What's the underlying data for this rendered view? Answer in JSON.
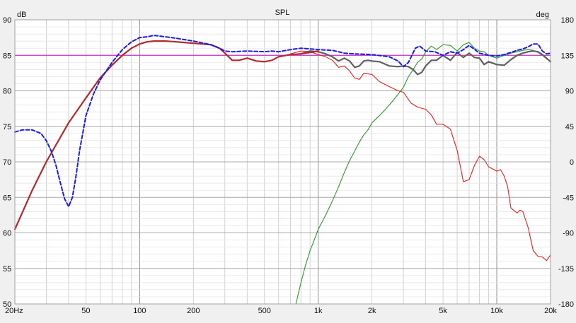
{
  "chart_data": {
    "type": "line",
    "title": "SPL",
    "ylabel_left": "dB",
    "ylabel_right": "deg",
    "x_scale": "log",
    "xlim": [
      20,
      20000
    ],
    "ylim_left": [
      50,
      90
    ],
    "ylim_right": [
      -180,
      180
    ],
    "grid": true,
    "x_tick_labels": [
      {
        "value": 20,
        "label": "20Hz"
      },
      {
        "value": 50,
        "label": "50"
      },
      {
        "value": 100,
        "label": "100"
      },
      {
        "value": 200,
        "label": "200"
      },
      {
        "value": 500,
        "label": "500"
      },
      {
        "value": 1000,
        "label": "1k"
      },
      {
        "value": 2000,
        "label": "2k"
      },
      {
        "value": 5000,
        "label": "5k"
      },
      {
        "value": 10000,
        "label": "10k"
      },
      {
        "value": 20000,
        "label": "20k"
      }
    ],
    "y_left_ticks": [
      50,
      55,
      60,
      65,
      70,
      75,
      80,
      85,
      90
    ],
    "y_right_ticks": [
      -180,
      -135,
      -90,
      -45,
      0,
      45,
      90,
      135,
      180
    ],
    "reference_level": 85,
    "colors": {
      "background": "#ffffff",
      "grid": "#c8c8c8",
      "reference": "#cc33cc",
      "red_line": "#ee1c1c",
      "green_line": "#2a9a2a",
      "gray_line": "#606060",
      "darkred_line": "#b22a2a",
      "blue_dashed": "#1a1aee"
    },
    "series": [
      {
        "key": "darkred",
        "axis": "left",
        "color": "#b22a2a",
        "width": 2.2,
        "dash": "",
        "x": [
          20,
          25,
          30,
          40,
          50,
          60,
          70,
          80,
          90,
          100,
          110,
          120,
          140,
          160,
          200,
          250,
          280,
          300,
          330,
          360,
          400,
          450,
          500,
          550,
          600,
          700,
          800,
          900,
          1000
        ],
        "y": [
          60.5,
          66,
          70,
          75.5,
          79,
          81.8,
          83.6,
          85,
          86,
          86.6,
          86.9,
          87,
          87,
          86.9,
          86.7,
          86.5,
          86,
          85.3,
          84.3,
          84.3,
          84.6,
          84.2,
          84.1,
          84.3,
          84.8,
          85.1,
          85.2,
          85.4,
          85.6
        ]
      },
      {
        "key": "red",
        "axis": "left",
        "color": "#ee1c1c",
        "width": 1.1,
        "dash": "",
        "x": [
          700,
          800,
          900,
          1000,
          1100,
          1200,
          1300,
          1400,
          1500,
          1600,
          1700,
          1800,
          2000,
          2200,
          2500,
          2800,
          3000,
          3300,
          3600,
          4000,
          4300,
          4600,
          5000,
          5500,
          6000,
          6500,
          7000,
          7500,
          8000,
          8500,
          9000,
          10000,
          10500,
          11000,
          11500,
          12000,
          13000,
          13500,
          14000,
          15000,
          16000,
          17000,
          18000,
          19000,
          20000
        ],
        "y": [
          85.2,
          85.6,
          85.5,
          85.1,
          84.8,
          84.3,
          83.3,
          83.5,
          82.8,
          81.8,
          81.6,
          82.5,
          82.3,
          81.3,
          80.6,
          80,
          79.8,
          78.3,
          77.7,
          77.4,
          76.6,
          75.3,
          75.3,
          74.6,
          71.6,
          67.2,
          67.5,
          69.5,
          70.8,
          70.3,
          69.3,
          68.7,
          68.9,
          68,
          66.5,
          63.5,
          62.8,
          63.2,
          63,
          60.7,
          57.5,
          56.7,
          56.6,
          56.1,
          56.9
        ]
      },
      {
        "key": "green",
        "axis": "left",
        "color": "#2a9a2a",
        "width": 1.1,
        "dash": "",
        "x": [
          750,
          800,
          850,
          900,
          950,
          1000,
          1100,
          1200,
          1300,
          1400,
          1500,
          1600,
          1700,
          1800,
          1900,
          2000,
          2200,
          2400,
          2600,
          2800,
          3000,
          3200,
          3400,
          3600,
          3800,
          4000,
          4300,
          4600,
          5000,
          5500,
          6000,
          6500,
          7000,
          7500,
          8000,
          8500,
          9000,
          10000,
          11000,
          12000,
          13000,
          14000,
          15000,
          16000,
          17000,
          18000,
          19000,
          20000
        ],
        "y": [
          50,
          53,
          55.5,
          57.5,
          59,
          60.5,
          62.5,
          64.5,
          66.5,
          68.5,
          70.2,
          71.5,
          72.8,
          73.8,
          74.5,
          75.5,
          76.5,
          77.5,
          78.5,
          79.5,
          80.5,
          82,
          83,
          84,
          84.5,
          85.5,
          86.3,
          85.8,
          86.5,
          86.4,
          85.6,
          86.5,
          86.8,
          86,
          85.6,
          85.5,
          85,
          84.6,
          85,
          85.3,
          85.5,
          85.7,
          85.8,
          85.7,
          85.4,
          85,
          84.5,
          84.1
        ]
      },
      {
        "key": "gray",
        "axis": "left",
        "color": "#606060",
        "width": 2.2,
        "dash": "",
        "x": [
          800,
          900,
          1000,
          1100,
          1200,
          1300,
          1400,
          1500,
          1600,
          1700,
          1800,
          1900,
          2000,
          2200,
          2500,
          2800,
          3000,
          3200,
          3400,
          3600,
          3800,
          4000,
          4300,
          4600,
          5000,
          5500,
          6000,
          6500,
          7000,
          7500,
          8000,
          8500,
          9000,
          10000,
          11000,
          12000,
          13000,
          14000,
          15000,
          16000,
          17000,
          18000,
          19000,
          20000
        ],
        "y": [
          85.2,
          85.6,
          85.5,
          85.2,
          84.8,
          84.2,
          84.6,
          84.2,
          83.3,
          83.5,
          84.2,
          84.3,
          84.2,
          84.1,
          83.5,
          83.4,
          83.5,
          83.4,
          83,
          82.3,
          82.6,
          83.5,
          84.3,
          84.3,
          85,
          84.3,
          85.4,
          84.7,
          85.3,
          84.7,
          84.6,
          83.7,
          84.1,
          83.7,
          83.6,
          84.4,
          85,
          85.3,
          85.5,
          85.6,
          85.5,
          85.1,
          84.6,
          84.1
        ]
      },
      {
        "key": "blue",
        "axis": "left",
        "color": "#1a1aee",
        "width": 2,
        "dash": "5,3",
        "x": [
          20,
          22,
          25,
          28,
          30,
          32,
          34,
          36,
          38,
          40,
          42,
          44,
          46,
          48,
          50,
          55,
          60,
          70,
          80,
          90,
          100,
          110,
          120,
          140,
          160,
          200,
          250,
          280,
          300,
          330,
          400,
          500,
          550,
          600,
          700,
          800,
          900,
          1000,
          1200,
          1400,
          1600,
          2000,
          2500,
          2800,
          3000,
          3200,
          3500,
          3700,
          4000,
          4500,
          5000,
          5500,
          6000,
          6500,
          7000,
          8000,
          9000,
          10000,
          11000,
          12000,
          13000,
          14000,
          15000,
          16000,
          17000,
          18000,
          19000,
          20000
        ],
        "y": [
          74.2,
          74.5,
          74.5,
          74,
          73,
          71.5,
          69.5,
          67,
          64.8,
          63.7,
          65,
          68,
          71.5,
          74,
          76.5,
          79.5,
          81.5,
          84,
          85.8,
          86.9,
          87.5,
          87.6,
          87.8,
          87.6,
          87.4,
          87,
          86.5,
          86,
          85.6,
          85.5,
          85.6,
          85.5,
          85.6,
          85.5,
          85.8,
          86,
          85.9,
          85.8,
          85.7,
          85.3,
          85.2,
          85.1,
          84.8,
          84.2,
          83.4,
          84,
          86,
          86.3,
          85.6,
          85.5,
          85,
          85.5,
          85.3,
          85.8,
          86.4,
          85.3,
          85,
          84.9,
          85.1,
          85.4,
          85.7,
          85.9,
          86.2,
          86.6,
          86.6,
          85.6,
          85.2,
          85.3
        ]
      }
    ]
  }
}
